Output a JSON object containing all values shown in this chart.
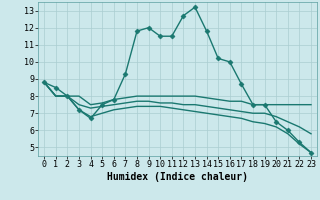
{
  "background_color": "#cce8eb",
  "grid_color": "#aacdd1",
  "line_color": "#1a7870",
  "marker": "D",
  "marker_size": 2.5,
  "line_width": 1.0,
  "xlabel": "Humidex (Indice chaleur)",
  "xlabel_fontsize": 7,
  "tick_fontsize": 6,
  "ylim": [
    4.5,
    13.5
  ],
  "yticks": [
    5,
    6,
    7,
    8,
    9,
    10,
    11,
    12,
    13
  ],
  "xlim": [
    -0.5,
    23.5
  ],
  "xticks": [
    0,
    1,
    2,
    3,
    4,
    5,
    6,
    7,
    8,
    9,
    10,
    11,
    12,
    13,
    14,
    15,
    16,
    17,
    18,
    19,
    20,
    21,
    22,
    23
  ],
  "series": [
    [
      8.8,
      8.5,
      8.0,
      7.2,
      6.7,
      7.5,
      7.8,
      9.3,
      11.8,
      12.0,
      11.5,
      11.5,
      12.7,
      13.2,
      11.8,
      10.2,
      10.0,
      8.7,
      7.5,
      7.5,
      6.5,
      6.0,
      5.3,
      4.7
    ],
    [
      8.8,
      8.0,
      8.0,
      8.0,
      7.5,
      7.6,
      7.8,
      7.9,
      8.0,
      8.0,
      8.0,
      8.0,
      8.0,
      8.0,
      7.9,
      7.8,
      7.7,
      7.7,
      7.5,
      7.5,
      7.5,
      7.5,
      7.5,
      7.5
    ],
    [
      8.8,
      8.0,
      8.0,
      7.5,
      7.3,
      7.4,
      7.5,
      7.6,
      7.7,
      7.7,
      7.6,
      7.6,
      7.5,
      7.5,
      7.4,
      7.3,
      7.2,
      7.1,
      7.0,
      7.0,
      6.8,
      6.5,
      6.2,
      5.8
    ],
    [
      8.8,
      8.0,
      8.0,
      7.2,
      6.8,
      7.0,
      7.2,
      7.3,
      7.4,
      7.4,
      7.4,
      7.3,
      7.2,
      7.1,
      7.0,
      6.9,
      6.8,
      6.7,
      6.5,
      6.4,
      6.2,
      5.8,
      5.2,
      4.7
    ]
  ],
  "show_markers": [
    true,
    false,
    false,
    false
  ]
}
